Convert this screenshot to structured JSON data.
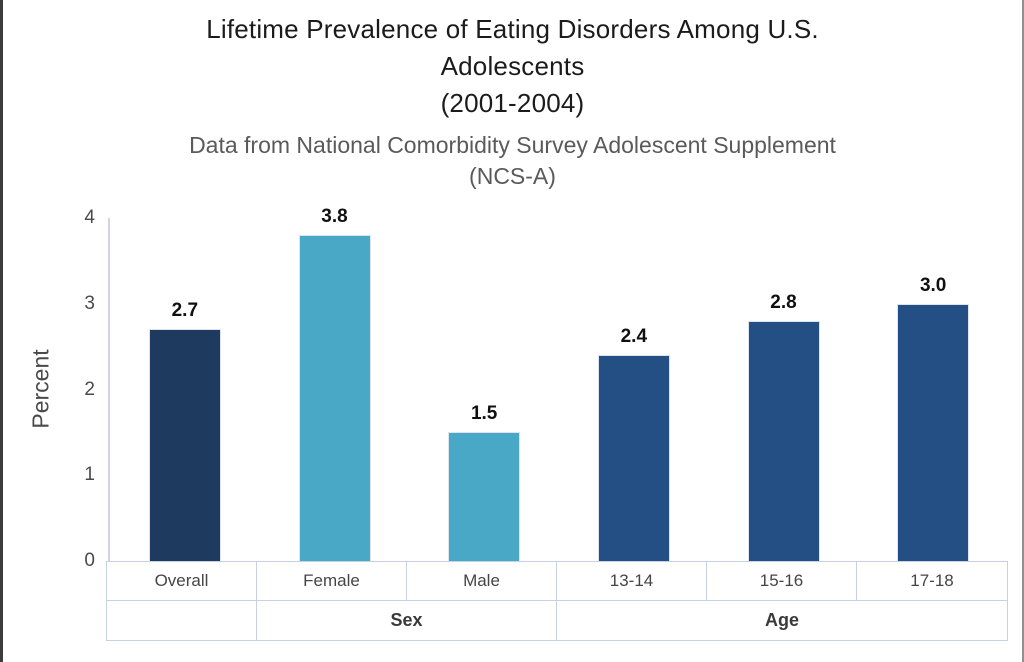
{
  "page": {
    "title": "Lifetime Prevalence of Eating Disorders Among U.S.\nAdolescents\n(2001-2004)",
    "subtitle": "Data from National Comorbidity Survey Adolescent Supplement\n(NCS-A)"
  },
  "chart_data": {
    "type": "bar",
    "title": "Lifetime Prevalence of Eating Disorders Among U.S. Adolescents (2001-2004)",
    "subtitle": "Data from National Comorbidity Survey Adolescent Supplement (NCS-A)",
    "xlabel": "",
    "ylabel": "Percent",
    "ylim": [
      0,
      4
    ],
    "yticks": [
      0,
      1,
      2,
      3,
      4
    ],
    "grid": false,
    "legend": "none",
    "categories": [
      "Overall",
      "Female",
      "Male",
      "13-14",
      "15-16",
      "17-18"
    ],
    "values": [
      2.7,
      3.8,
      1.5,
      2.4,
      2.8,
      3.0
    ],
    "value_labels": [
      "2.7",
      "3.8",
      "1.5",
      "2.4",
      "2.8",
      "3.0"
    ],
    "bar_colors": [
      "#1e3a5f",
      "#49a8c6",
      "#49a8c6",
      "#234f85",
      "#234f85",
      "#234f85"
    ],
    "groups": [
      {
        "label": "",
        "span": 1
      },
      {
        "label": "Sex",
        "span": 2
      },
      {
        "label": "Age",
        "span": 3
      }
    ]
  },
  "colors": {
    "axis_line": "#ccd5ea",
    "table_border": "#c7d1e5",
    "navy_bar": "#1e3a5f",
    "teal_bar": "#49a8c6",
    "blue_bar": "#234f85",
    "title_text": "#1b1b1b",
    "subtitle_text": "#5a5a5a",
    "tick_text": "#4a4a4a"
  }
}
